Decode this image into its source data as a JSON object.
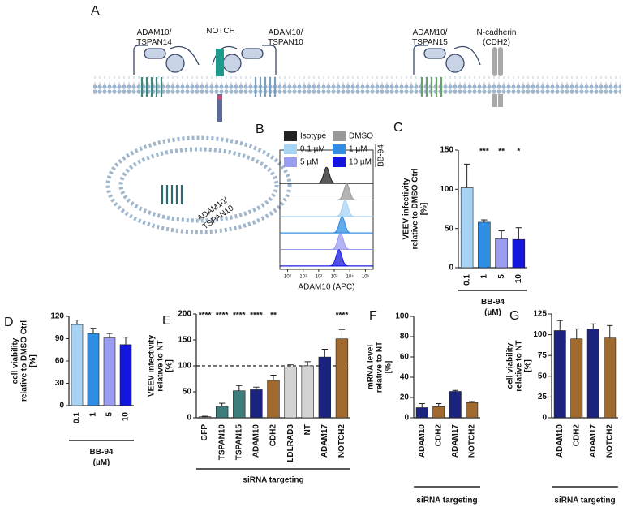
{
  "diagram": {
    "panel_label": "A",
    "labels": [
      [
        "ADAM10/",
        "TSPAN14"
      ],
      [
        "NOTCH"
      ],
      [
        "ADAM10/",
        "TSPAN10"
      ],
      [
        "ADAM10/",
        "TSPAN15"
      ],
      [
        "N-cadherin",
        "(CDH2)"
      ],
      [
        "ADAM10/",
        "TSPAN10"
      ]
    ]
  },
  "chart_data": [
    {
      "type": "density",
      "panel_label": "B",
      "xlabel": "ADAM10 (APC)",
      "legend_group": "BB-94",
      "xlim": [
        -0.5,
        5.5
      ],
      "xticks": [
        {
          "value": 0,
          "label": "10⁰"
        },
        {
          "value": 1,
          "label": "10¹"
        },
        {
          "value": 2,
          "label": "10²"
        },
        {
          "value": 3,
          "label": "10³"
        },
        {
          "value": 4,
          "label": "10⁴"
        },
        {
          "value": 5,
          "label": "10⁵"
        }
      ],
      "series": [
        {
          "name": "Isotype",
          "color": "#222222",
          "peak": 2.5
        },
        {
          "name": "DMSO",
          "color": "#999999",
          "peak": 3.8
        },
        {
          "name": "0.1 µM",
          "color": "#a7d3f5",
          "peak": 3.7
        },
        {
          "name": "1 µM",
          "color": "#2f8de4",
          "peak": 3.5
        },
        {
          "name": "5 µM",
          "color": "#9a9cf0",
          "peak": 3.4
        },
        {
          "name": "10 µM",
          "color": "#1515e0",
          "peak": 3.3
        }
      ]
    },
    {
      "type": "bar",
      "panel_label": "C",
      "ylabel": [
        "VEEV infectivity",
        "relative to DMSO Ctrl",
        "[%]"
      ],
      "xlabel": [
        "BB-94",
        "(µM)"
      ],
      "categories": [
        "0.1",
        "1",
        "5",
        "10"
      ],
      "values": [
        102,
        58,
        37,
        36
      ],
      "errors": [
        30,
        3,
        10,
        15
      ],
      "colors": [
        "#a7d3f5",
        "#2f8de4",
        "#9a9cf0",
        "#1515e0"
      ],
      "annotations": [
        null,
        "***",
        "**",
        "*"
      ],
      "ylim": [
        0,
        150
      ],
      "yticks": [
        0,
        50,
        100,
        150
      ]
    },
    {
      "type": "bar",
      "panel_label": "D",
      "ylabel": [
        "cell viability",
        "relative to DMSO Ctrl",
        "[%]"
      ],
      "xlabel": [
        "BB-94",
        "(µM)"
      ],
      "categories": [
        "0.1",
        "1",
        "5",
        "10"
      ],
      "values": [
        109,
        97,
        91,
        82
      ],
      "errors": [
        6,
        7,
        6,
        10
      ],
      "colors": [
        "#a7d3f5",
        "#2f8de4",
        "#9a9cf0",
        "#1515e0"
      ],
      "ylim": [
        0,
        120
      ],
      "yticks": [
        0,
        30,
        60,
        90,
        120
      ]
    },
    {
      "type": "bar",
      "panel_label": "E",
      "ylabel": [
        "VEEV infectivity",
        "relative to NT",
        "[%]"
      ],
      "xlabel": [
        "siRNA targeting"
      ],
      "categories": [
        "GFP",
        "TSPAN10",
        "TSPAN15",
        "ADAM10",
        "CDH2",
        "LDLRAD3",
        "NT",
        "ADAM17",
        "NOTCH2"
      ],
      "values": [
        2,
        22,
        52,
        54,
        72,
        98,
        100,
        117,
        152
      ],
      "errors": [
        1,
        6,
        10,
        5,
        10,
        4,
        8,
        15,
        18
      ],
      "colors": [
        "#888888",
        "#3e7b7b",
        "#3e7b7b",
        "#1a237e",
        "#a0692e",
        "#d3d3d3",
        "#d3d3d3",
        "#1a237e",
        "#a0692e"
      ],
      "annotations": [
        "****",
        "****",
        "****",
        "****",
        "**",
        null,
        null,
        null,
        "****"
      ],
      "reference_line": 100,
      "ylim": [
        0,
        200
      ],
      "yticks": [
        0,
        50,
        100,
        150,
        200
      ]
    },
    {
      "type": "bar",
      "panel_label": "F",
      "ylabel": [
        "mRNA level",
        "relative to NT",
        "[%]"
      ],
      "xlabel": [
        "siRNA targeting"
      ],
      "categories": [
        "ADAM10",
        "CDH2",
        "ADAM17",
        "NOTCH2"
      ],
      "values": [
        10,
        11,
        26,
        15
      ],
      "errors": [
        4,
        3,
        1,
        1
      ],
      "colors": [
        "#1a237e",
        "#a0692e",
        "#1a237e",
        "#a0692e"
      ],
      "ylim": [
        0,
        100
      ],
      "yticks": [
        0,
        20,
        40,
        60,
        80,
        100
      ]
    },
    {
      "type": "bar",
      "panel_label": "G",
      "ylabel": [
        "cell viability",
        "relative to NT",
        "[%]"
      ],
      "xlabel": [
        "siRNA targeting"
      ],
      "categories": [
        "ADAM10",
        "CDH2",
        "ADAM17",
        "NOTCH2"
      ],
      "values": [
        105,
        95,
        107,
        96
      ],
      "errors": [
        12,
        12,
        6,
        15
      ],
      "colors": [
        "#1a237e",
        "#a0692e",
        "#1a237e",
        "#a0692e"
      ],
      "ylim": [
        0,
        125
      ],
      "yticks": [
        0,
        25,
        50,
        75,
        100,
        125
      ]
    }
  ]
}
